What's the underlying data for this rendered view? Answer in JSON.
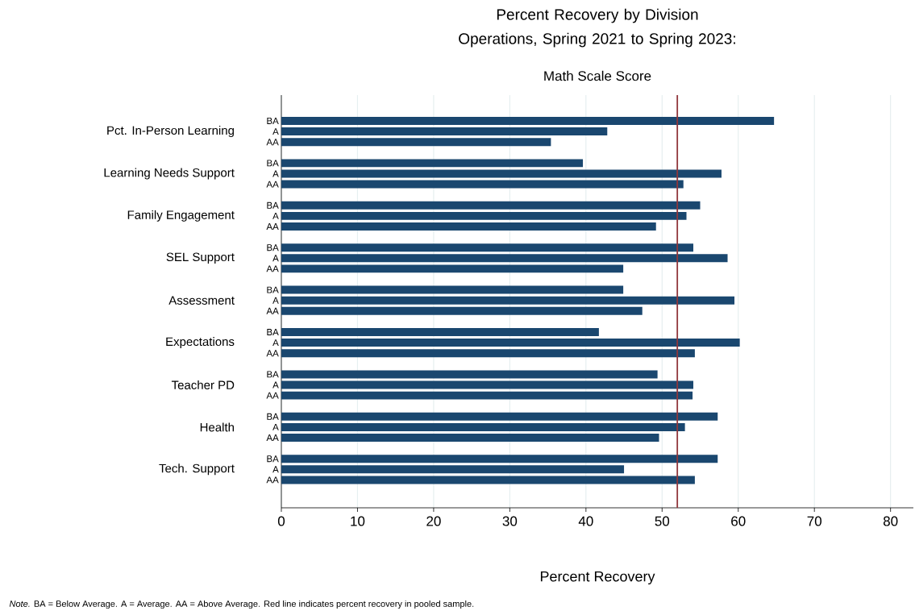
{
  "chart_data": {
    "type": "bar",
    "orientation": "horizontal",
    "title": "Percent Recovery by Division Operations, Spring 2021 to Spring 2023:",
    "subtitle": "Math Scale Score",
    "xlabel": "Percent Recovery",
    "categories": [
      "Pct. In-Person Learning",
      "Learning Needs Support",
      "Family Engagement",
      "SEL Support",
      "Assessment",
      "Expectations",
      "Teacher PD",
      "Health",
      "Tech. Support"
    ],
    "series": [
      {
        "name": "BA",
        "color": "#1a476f",
        "values": [
          64.7,
          39.6,
          55.0,
          54.1,
          44.9,
          41.7,
          49.4,
          57.3,
          57.3
        ]
      },
      {
        "name": "A",
        "color": "#1a476f",
        "values": [
          42.8,
          57.8,
          53.2,
          58.6,
          59.5,
          60.2,
          54.1,
          53.0,
          45.0
        ]
      },
      {
        "name": "AA",
        "color": "#1a476f",
        "values": [
          35.4,
          52.8,
          49.2,
          44.9,
          47.4,
          54.3,
          54.0,
          49.6,
          54.3
        ]
      }
    ],
    "xlim": [
      0,
      83
    ],
    "xticks": [
      0,
      10,
      20,
      30,
      40,
      50,
      60,
      70,
      80
    ],
    "grid": "x",
    "ref_lines": [
      {
        "axis": "x",
        "value": 52,
        "color": "#90353b"
      }
    ],
    "annotations": [
      "*Note.* BA = Below Average. A = Average. AA = Above Average. Red line indicates percent recovery in pooled sample."
    ]
  }
}
